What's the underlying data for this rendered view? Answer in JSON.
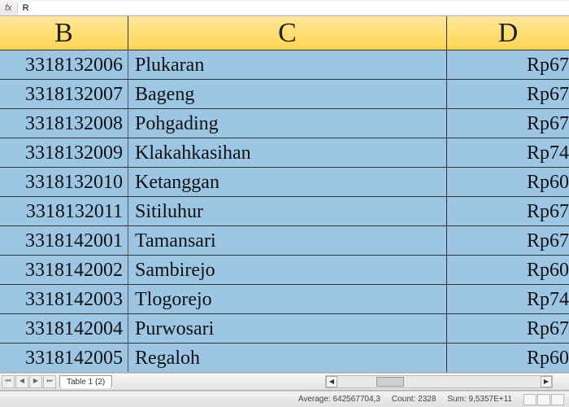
{
  "formula_bar": {
    "fx_label": "fx",
    "value": "R"
  },
  "columns": {
    "b": "B",
    "c": "C",
    "d": "D"
  },
  "rows": [
    {
      "b": "3318132006",
      "c": "Plukaran",
      "d": "Rp67"
    },
    {
      "b": "3318132007",
      "c": "Bageng",
      "d": "Rp67"
    },
    {
      "b": "3318132008",
      "c": "Pohgading",
      "d": "Rp67"
    },
    {
      "b": "3318132009",
      "c": "Klakahkasihan",
      "d": "Rp74"
    },
    {
      "b": "3318132010",
      "c": "Ketanggan",
      "d": "Rp60"
    },
    {
      "b": "3318132011",
      "c": "Sitiluhur",
      "d": "Rp67"
    },
    {
      "b": "3318142001",
      "c": "Tamansari",
      "d": "Rp67"
    },
    {
      "b": "3318142002",
      "c": "Sambirejo",
      "d": "Rp60"
    },
    {
      "b": "3318142003",
      "c": "Tlogorejo",
      "d": "Rp74"
    },
    {
      "b": "3318142004",
      "c": "Purwosari",
      "d": "Rp67"
    },
    {
      "b": "3318142005",
      "c": "Regaloh",
      "d": "Rp60"
    }
  ],
  "tabs": {
    "sheet_name": "Table 1 (2)"
  },
  "status": {
    "average_label": "Average:",
    "average_value": "642567704,3",
    "count_label": "Count:",
    "count_value": "2328",
    "sum_label": "Sum:",
    "sum_value": "9,5357E+11"
  },
  "colors": {
    "header_bg": "#ffd550",
    "cell_bg": "#9cc6e4",
    "border": "#333333"
  }
}
